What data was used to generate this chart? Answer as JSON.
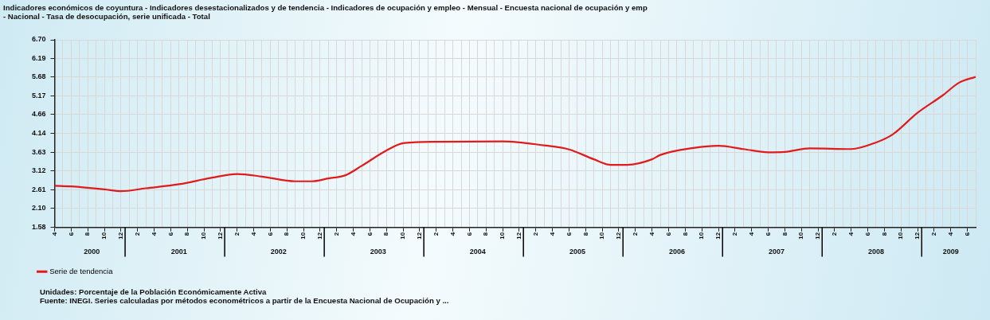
{
  "chart_data": {
    "type": "line",
    "title": "Indicadores económicos de coyuntura - Indicadores desestacionalizados y de tendencia - Indicadores de ocupación y empleo - Mensual - Encuesta nacional de ocupación y emp",
    "subtitle": "- Nacional - Tasa de desocupación, serie unificada - Total",
    "series": [
      {
        "name": "Serie de tendencia",
        "color": "#e01b1b",
        "x": [
          "2000-04",
          "2000-06",
          "2000-10",
          "2000-12",
          "2001-03",
          "2001-07",
          "2001-11",
          "2002-02",
          "2002-05",
          "2002-09",
          "2002-11",
          "2003-01",
          "2003-03",
          "2003-05",
          "2003-08",
          "2003-10",
          "2004-02",
          "2004-10",
          "2005-03",
          "2005-06",
          "2005-09",
          "2005-11",
          "2006-01",
          "2006-04",
          "2006-05",
          "2006-09",
          "2006-12",
          "2007-03",
          "2007-06",
          "2007-08",
          "2007-11",
          "2008-04",
          "2008-07",
          "2008-09",
          "2008-12",
          "2009-03",
          "2009-05",
          "2009-07"
        ],
        "values": [
          2.72,
          2.7,
          2.62,
          2.57,
          2.65,
          2.76,
          2.94,
          3.04,
          2.97,
          2.84,
          2.84,
          2.92,
          3.0,
          3.26,
          3.68,
          3.88,
          3.92,
          3.93,
          3.82,
          3.71,
          3.44,
          3.29,
          3.29,
          3.44,
          3.56,
          3.75,
          3.81,
          3.72,
          3.63,
          3.64,
          3.74,
          3.72,
          3.9,
          4.12,
          4.71,
          5.18,
          5.53,
          5.69
        ]
      }
    ],
    "xlim": [
      "2000-04",
      "2009-07"
    ],
    "xticks": [
      {
        "value": "2000-04",
        "label": "4"
      },
      {
        "value": "2000-05",
        "label": null
      },
      {
        "value": "2000-06",
        "label": "6"
      },
      {
        "value": "2000-07",
        "label": null
      },
      {
        "value": "2000-08",
        "label": "8"
      },
      {
        "value": "2000-09",
        "label": null
      },
      {
        "value": "2000-10",
        "label": "10"
      },
      {
        "value": "2000-11",
        "label": null
      },
      {
        "value": "2000-12",
        "label": "12"
      },
      {
        "value": "2001-01",
        "label": null
      },
      {
        "value": "2001-02",
        "label": "2"
      },
      {
        "value": "2001-03",
        "label": null
      },
      {
        "value": "2001-04",
        "label": "4"
      },
      {
        "value": "2001-05",
        "label": null
      },
      {
        "value": "2001-06",
        "label": "6"
      },
      {
        "value": "2001-07",
        "label": null
      },
      {
        "value": "2001-08",
        "label": "8"
      },
      {
        "value": "2001-09",
        "label": null
      },
      {
        "value": "2001-10",
        "label": "10"
      },
      {
        "value": "2001-11",
        "label": null
      },
      {
        "value": "2001-12",
        "label": "12"
      },
      {
        "value": "2002-01",
        "label": null
      },
      {
        "value": "2002-02",
        "label": "2"
      },
      {
        "value": "2002-03",
        "label": null
      },
      {
        "value": "2002-04",
        "label": "4"
      },
      {
        "value": "2002-05",
        "label": null
      },
      {
        "value": "2002-06",
        "label": "6"
      },
      {
        "value": "2002-07",
        "label": null
      },
      {
        "value": "2002-08",
        "label": "8"
      },
      {
        "value": "2002-09",
        "label": null
      },
      {
        "value": "2002-10",
        "label": "10"
      },
      {
        "value": "2002-11",
        "label": null
      },
      {
        "value": "2002-12",
        "label": "12"
      },
      {
        "value": "2003-01",
        "label": null
      },
      {
        "value": "2003-02",
        "label": "2"
      },
      {
        "value": "2003-03",
        "label": null
      },
      {
        "value": "2003-04",
        "label": "4"
      },
      {
        "value": "2003-05",
        "label": null
      },
      {
        "value": "2003-06",
        "label": "6"
      },
      {
        "value": "2003-07",
        "label": null
      },
      {
        "value": "2003-08",
        "label": "8"
      },
      {
        "value": "2003-09",
        "label": null
      },
      {
        "value": "2003-10",
        "label": "10"
      },
      {
        "value": "2003-11",
        "label": null
      },
      {
        "value": "2003-12",
        "label": "12"
      },
      {
        "value": "2004-01",
        "label": null
      },
      {
        "value": "2004-02",
        "label": "2"
      },
      {
        "value": "2004-03",
        "label": null
      },
      {
        "value": "2004-04",
        "label": "4"
      },
      {
        "value": "2004-05",
        "label": null
      },
      {
        "value": "2004-06",
        "label": "6"
      },
      {
        "value": "2004-07",
        "label": null
      },
      {
        "value": "2004-08",
        "label": "8"
      },
      {
        "value": "2004-09",
        "label": null
      },
      {
        "value": "2004-10",
        "label": "10"
      },
      {
        "value": "2004-11",
        "label": null
      },
      {
        "value": "2004-12",
        "label": "12"
      },
      {
        "value": "2005-01",
        "label": null
      },
      {
        "value": "2005-02",
        "label": "2"
      },
      {
        "value": "2005-03",
        "label": null
      },
      {
        "value": "2005-04",
        "label": "4"
      },
      {
        "value": "2005-05",
        "label": null
      },
      {
        "value": "2005-06",
        "label": "6"
      },
      {
        "value": "2005-07",
        "label": null
      },
      {
        "value": "2005-08",
        "label": "8"
      },
      {
        "value": "2005-09",
        "label": null
      },
      {
        "value": "2005-10",
        "label": "10"
      },
      {
        "value": "2005-11",
        "label": null
      },
      {
        "value": "2005-12",
        "label": "12"
      },
      {
        "value": "2006-01",
        "label": null
      },
      {
        "value": "2006-02",
        "label": "2"
      },
      {
        "value": "2006-03",
        "label": null
      },
      {
        "value": "2006-04",
        "label": "4"
      },
      {
        "value": "2006-05",
        "label": null
      },
      {
        "value": "2006-06",
        "label": "6"
      },
      {
        "value": "2006-07",
        "label": null
      },
      {
        "value": "2006-08",
        "label": "8"
      },
      {
        "value": "2006-09",
        "label": null
      },
      {
        "value": "2006-10",
        "label": "10"
      },
      {
        "value": "2006-11",
        "label": null
      },
      {
        "value": "2006-12",
        "label": "12"
      },
      {
        "value": "2007-01",
        "label": null
      },
      {
        "value": "2007-02",
        "label": "2"
      },
      {
        "value": "2007-03",
        "label": null
      },
      {
        "value": "2007-04",
        "label": "4"
      },
      {
        "value": "2007-05",
        "label": null
      },
      {
        "value": "2007-06",
        "label": "6"
      },
      {
        "value": "2007-07",
        "label": null
      },
      {
        "value": "2007-08",
        "label": "8"
      },
      {
        "value": "2007-09",
        "label": null
      },
      {
        "value": "2007-10",
        "label": "10"
      },
      {
        "value": "2007-11",
        "label": null
      },
      {
        "value": "2007-12",
        "label": "12"
      },
      {
        "value": "2008-01",
        "label": null
      },
      {
        "value": "2008-02",
        "label": "2"
      },
      {
        "value": "2008-03",
        "label": null
      },
      {
        "value": "2008-04",
        "label": "4"
      },
      {
        "value": "2008-05",
        "label": null
      },
      {
        "value": "2008-06",
        "label": "6"
      },
      {
        "value": "2008-07",
        "label": null
      },
      {
        "value": "2008-08",
        "label": "8"
      },
      {
        "value": "2008-09",
        "label": null
      },
      {
        "value": "2008-10",
        "label": "10"
      },
      {
        "value": "2008-11",
        "label": null
      },
      {
        "value": "2008-12",
        "label": "12"
      },
      {
        "value": "2009-01",
        "label": null
      },
      {
        "value": "2009-02",
        "label": "2"
      },
      {
        "value": "2009-03",
        "label": null
      },
      {
        "value": "2009-04",
        "label": "4"
      },
      {
        "value": "2009-05",
        "label": null
      },
      {
        "value": "2009-06",
        "label": "6"
      },
      {
        "value": "2009-07",
        "label": null
      }
    ],
    "x2lim": [
      "2000-04",
      "2009-07"
    ],
    "x2ticks": [
      {
        "value": "2000-08-16",
        "label": "2000"
      },
      {
        "value": "2001-07-01",
        "label": "2001"
      },
      {
        "value": "2002-07-01",
        "label": "2002"
      },
      {
        "value": "2003-07-01",
        "label": "2003"
      },
      {
        "value": "2004-07-01",
        "label": "2004"
      },
      {
        "value": "2005-07-01",
        "label": "2005"
      },
      {
        "value": "2006-07-01",
        "label": "2006"
      },
      {
        "value": "2007-07-01",
        "label": "2007"
      },
      {
        "value": "2008-07-01",
        "label": "2008"
      },
      {
        "value": "2009-04-01",
        "label": "2009"
      }
    ],
    "ylim": [
      1.58,
      6.7
    ],
    "yticks": [
      1.58,
      {
        "value": 2.1,
        "label": "2.10"
      },
      2.61,
      3.12,
      3.63,
      4.14,
      4.66,
      5.17,
      5.68,
      6.19,
      {
        "value": 6.7,
        "label": "6.70"
      }
    ],
    "grid": true,
    "legend": "bottom left",
    "annotations": [
      "Unidades: Porcentaje de la Población Económicamente Activa",
      "Fuente: INEGI. Series calculadas por métodos econométricos a partir de la Encuesta Nacional de Ocupación y ..."
    ]
  }
}
